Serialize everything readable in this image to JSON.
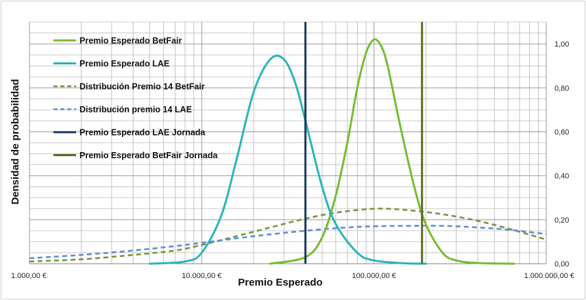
{
  "chart_data": {
    "type": "line",
    "xlabel": "Premio Esperado",
    "ylabel": "Densidad de probabilidad",
    "x_scale": "log",
    "xlim": [
      1000,
      1000000
    ],
    "ylim": [
      0,
      1.1
    ],
    "x_ticks": [
      1000,
      10000,
      100000,
      1000000
    ],
    "x_tick_labels": [
      "1.000,00 €",
      "10.000,00 €",
      "100.000,00 €",
      "1.000.000,00 €"
    ],
    "y_ticks": [
      0,
      0.2,
      0.4,
      0.6,
      0.8,
      1.0
    ],
    "y_tick_labels": [
      "0,00",
      "0,20",
      "0,40",
      "0,60",
      "0,80",
      "1,00"
    ],
    "y_axis_side": "right",
    "grid": true,
    "legend_position": "top-left",
    "series": [
      {
        "name": "Premio Esperado BetFair",
        "style": "solid",
        "color": "#77bb33",
        "x": [
          25000,
          40000,
          50000,
          60000,
          70000,
          80000,
          90000,
          100000,
          110000,
          120000,
          140000,
          170000,
          200000,
          250000,
          300000,
          400000,
          650000
        ],
        "y": [
          0.0,
          0.03,
          0.12,
          0.31,
          0.55,
          0.8,
          0.96,
          1.02,
          0.99,
          0.9,
          0.65,
          0.36,
          0.18,
          0.05,
          0.015,
          0.003,
          0.0
        ]
      },
      {
        "name": "Premio Esperado LAE",
        "style": "solid",
        "color": "#2ab5b8",
        "x": [
          5000,
          8000,
          10000,
          13000,
          16000,
          20000,
          25000,
          30000,
          35000,
          40000,
          50000,
          60000,
          80000,
          100000,
          150000,
          200000
        ],
        "y": [
          0.0,
          0.01,
          0.05,
          0.22,
          0.48,
          0.78,
          0.93,
          0.93,
          0.82,
          0.65,
          0.35,
          0.18,
          0.05,
          0.015,
          0.002,
          0.0
        ]
      },
      {
        "name": "Distribución Premio 14 BetFair",
        "style": "dashed",
        "color": "#77933c",
        "x": [
          1000,
          2000,
          4000,
          7000,
          10000,
          15000,
          25000,
          40000,
          60000,
          100000,
          150000,
          250000,
          400000,
          600000,
          1000000
        ],
        "y": [
          0.01,
          0.02,
          0.04,
          0.06,
          0.085,
          0.12,
          0.165,
          0.205,
          0.232,
          0.25,
          0.245,
          0.225,
          0.195,
          0.16,
          0.11
        ]
      },
      {
        "name": "Distribución premio 14 LAE",
        "style": "dashed",
        "color": "#5b8fd6",
        "x": [
          1000,
          2000,
          4000,
          7000,
          10000,
          20000,
          40000,
          70000,
          100000,
          150000,
          250000,
          400000,
          600000,
          1000000
        ],
        "y": [
          0.025,
          0.04,
          0.06,
          0.08,
          0.095,
          0.125,
          0.15,
          0.165,
          0.17,
          0.172,
          0.172,
          0.165,
          0.155,
          0.135
        ]
      },
      {
        "name": "Premio Esperado LAE Jornada",
        "style": "vertical",
        "color": "#17365d",
        "x_value": 40000
      },
      {
        "name": "Premio Esperado BetFair Jornada",
        "style": "vertical",
        "color": "#5f6b1e",
        "x_value": 190000
      }
    ]
  }
}
